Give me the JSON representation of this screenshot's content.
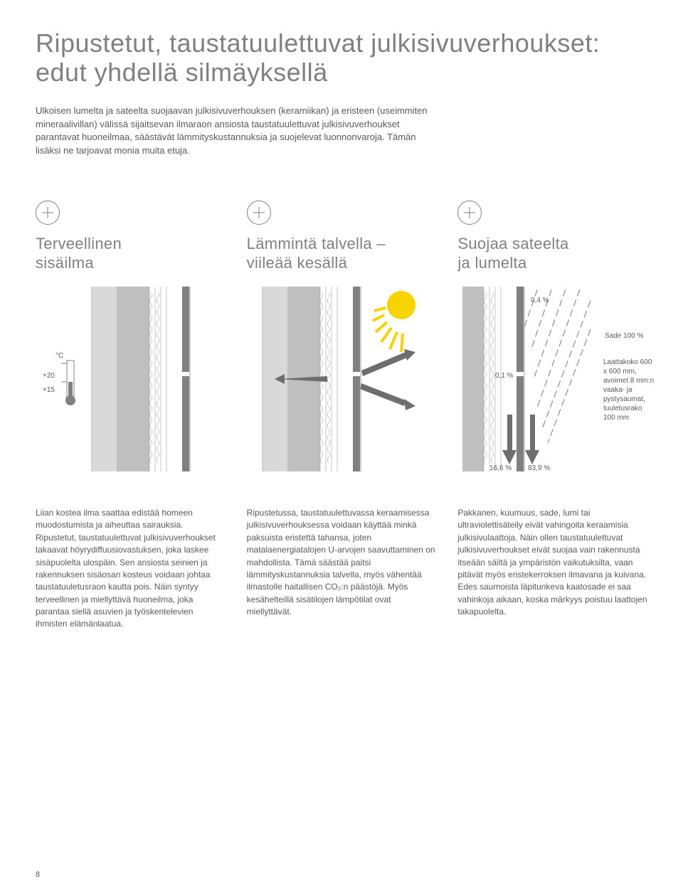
{
  "title": "Ripustetut, taustatuulettuvat julkisivuverhoukset:\nedut yhdellä silmäyksellä",
  "intro": "Ulkoisen lumelta ja sateelta suojaavan julkisivuverhouksen (keramiikan) ja eristeen (useimmiten mineraalivillan) välissä sijaitsevan ilmaraon ansiosta taustatuulettuvat julkisivuverhoukset parantavat huoneilmaa, säästävät lämmityskustannuksia ja suojelevat luonnonvaroja. Tämän lisäksi ne tarjoavat monia muita etuja.",
  "benefits": [
    {
      "title": "Terveellinen\nsisäilma"
    },
    {
      "title": "Lämmintä talvella –\nviileää kesällä"
    },
    {
      "title": "Suojaa sateelta\nja lumelta"
    }
  ],
  "thermo": {
    "unit": "°C",
    "high": "+20",
    "low": "+15"
  },
  "rain": {
    "top_pct": "0,4 %",
    "mid_pct": "0,1 %",
    "bottom_left": "16,6 %",
    "bottom_right": "83,9 %",
    "rain_label": "Sade 100 %",
    "tile_info": "Laattakoko 600 x 600 mm, avoimet 8 mm:n vaaka- ja pystysaumat, tuuletusrako 100 mm"
  },
  "columns": [
    "Liian kostea ilma saattaa edistää homeen muodostumista ja aiheuttaa sairauksia. Ripustetut, taustatuulettuvat julkisivuverhoukset takaavat höyrydiffuusiovastuksen, joka laskee sisäpuolelta ulospäin. Sen ansiosta seinien ja rakennuksen sisäosan kosteus voidaan johtaa taustatuuletusraon kautta pois. Näin syntyy terveellinen ja miellyttävä huoneilma, joka parantaa siellä asuvien ja työskentelevien ihmisten elämänlaatua.",
    "Ripustetussa, taustatuulettuvassa keraamisessa julkisivuverhouksessa voidaan käyttää minkä paksuista eristettä tahansa, joten matalaenergiatalojen U-arvojen saavuttaminen on mahdollista. Tämä säästää paitsi lämmityskustannuksia talvella, myös vähentää ilmastolle haitallisen CO₂:n päästöjä. Myös kesähelteillä sisätilojen lämpötilat ovat miellyttävät.",
    "Pakkanen, kuumuus, sade, lumi tai ultraviolettisäteily eivät vahingoita keraamisia julkisivulaattoja. Näin ollen taustatuulettuvat julkisivuverhoukset eivät suojaa vain rakennusta itseään säiltä ja ympäristön vaikutuksilta, vaan pitävät myös eristekerroksen ilmavana ja kuivana. Edes saumoista läpitunkeva kaatosade ei saa vahinkoja aikaan, koska märkyys poistuu laattojen takapuolelta."
  ],
  "page_number": "8",
  "colors": {
    "text": "#595959",
    "heading": "#808080",
    "wall_light": "#d9d9d9",
    "wall_mid": "#bfbfbf",
    "wall_dark": "#808080",
    "sun": "#f7d400",
    "arrow": "#6e6e6e",
    "panel_border": "#a0a0a0"
  }
}
